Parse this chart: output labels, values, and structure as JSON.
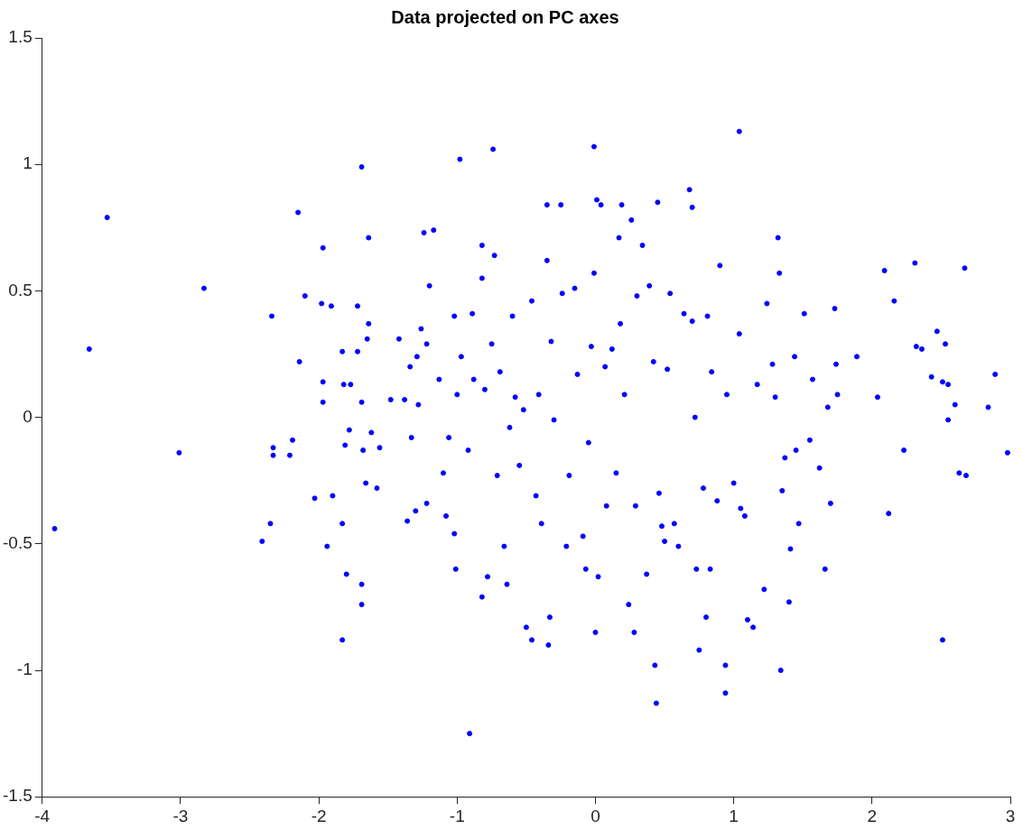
{
  "chart_data": {
    "type": "scatter",
    "title": "Data projected on PC axes",
    "xlim": [
      -4,
      3
    ],
    "ylim": [
      -1.5,
      1.5
    ],
    "xticks": [
      -4,
      -3,
      -2,
      -1,
      0,
      1,
      2,
      3
    ],
    "yticks": [
      -1.5,
      -1,
      -0.5,
      0,
      0.5,
      1,
      1.5
    ],
    "grid": false,
    "legend": false,
    "marker": "circle",
    "series": [
      {
        "color": "#0000ff",
        "x": [
          -3.91,
          -3.66,
          -3.53,
          -3.01,
          -2.83,
          -2.41,
          -2.35,
          -2.34,
          -2.33,
          -2.33,
          -2.15,
          -2.14,
          -2.1,
          -2.19,
          -2.21,
          -2.03,
          -1.97,
          -1.98,
          -1.97,
          -1.97,
          -1.94,
          -1.91,
          -1.9,
          -1.82,
          -1.83,
          -1.83,
          -1.83,
          -1.8,
          -1.77,
          -1.78,
          -1.81,
          -1.69,
          -1.72,
          -1.72,
          -1.69,
          -1.68,
          -1.69,
          -1.69,
          -1.64,
          -1.64,
          -1.65,
          -1.66,
          -1.62,
          -1.58,
          -1.56,
          -1.48,
          -1.42,
          -1.38,
          -1.36,
          -1.34,
          -1.33,
          -1.3,
          -1.29,
          -1.28,
          -1.26,
          -1.24,
          -1.22,
          -1.22,
          -1.2,
          -1.17,
          -1.13,
          -1.1,
          -1.08,
          -1.06,
          -1.02,
          -1.02,
          -1.0,
          -1.01,
          -0.98,
          -0.97,
          -0.92,
          -0.91,
          -0.89,
          -0.88,
          -0.82,
          -0.82,
          -0.82,
          -0.8,
          -0.78,
          -0.75,
          -0.74,
          -0.73,
          -0.71,
          -0.69,
          -0.66,
          -0.64,
          -0.62,
          -0.6,
          -0.58,
          -0.55,
          -0.52,
          -0.5,
          -0.46,
          -0.46,
          -0.43,
          -0.41,
          -0.39,
          -0.35,
          -0.35,
          -0.33,
          -0.34,
          -0.32,
          -0.3,
          -0.25,
          -0.24,
          -0.21,
          -0.19,
          -0.15,
          -0.13,
          -0.09,
          -0.07,
          -0.05,
          -0.03,
          -0.01,
          -0.01,
          0.0,
          0.01,
          0.02,
          0.04,
          0.07,
          0.08,
          0.12,
          0.15,
          0.17,
          0.19,
          0.18,
          0.21,
          0.24,
          0.26,
          0.28,
          0.29,
          0.3,
          0.34,
          0.37,
          0.39,
          0.42,
          0.43,
          0.44,
          0.45,
          0.46,
          0.48,
          0.5,
          0.52,
          0.54,
          0.57,
          0.6,
          0.64,
          0.68,
          0.7,
          0.7,
          0.72,
          0.73,
          0.75,
          0.78,
          0.8,
          0.81,
          0.83,
          0.84,
          0.88,
          0.9,
          0.94,
          0.94,
          0.95,
          1.0,
          1.04,
          1.04,
          1.05,
          1.08,
          1.1,
          1.14,
          1.17,
          1.22,
          1.24,
          1.28,
          1.3,
          1.32,
          1.33,
          1.34,
          1.35,
          1.37,
          1.4,
          1.41,
          1.44,
          1.45,
          1.47,
          1.51,
          1.55,
          1.57,
          1.62,
          1.66,
          1.68,
          1.7,
          1.73,
          1.74,
          1.75,
          1.89,
          2.04,
          2.09,
          2.12,
          2.16,
          2.23,
          2.31,
          2.32,
          2.36,
          2.43,
          2.47,
          2.51,
          2.51,
          2.53,
          2.55,
          2.55,
          2.6,
          2.63,
          2.67,
          2.68,
          2.89,
          2.84,
          2.98
        ],
        "values": [
          -0.44,
          0.27,
          0.79,
          -0.14,
          0.51,
          -0.49,
          -0.42,
          0.4,
          -0.12,
          -0.15,
          0.81,
          0.22,
          0.48,
          -0.09,
          -0.15,
          -0.32,
          0.67,
          0.45,
          0.14,
          0.06,
          -0.51,
          0.44,
          -0.31,
          0.13,
          0.26,
          -0.42,
          -0.88,
          -0.62,
          0.13,
          -0.05,
          -0.11,
          0.99,
          0.44,
          0.26,
          0.06,
          -0.13,
          -0.66,
          -0.74,
          0.71,
          0.37,
          0.31,
          -0.26,
          -0.06,
          -0.28,
          -0.12,
          0.07,
          0.31,
          0.07,
          -0.41,
          0.2,
          -0.08,
          -0.37,
          0.24,
          0.05,
          0.35,
          0.73,
          0.29,
          -0.34,
          0.52,
          0.74,
          0.15,
          -0.22,
          -0.39,
          -0.08,
          0.4,
          -0.46,
          0.09,
          -0.6,
          1.02,
          0.24,
          -0.13,
          -1.25,
          0.41,
          0.15,
          0.55,
          -0.71,
          0.68,
          0.11,
          -0.63,
          0.29,
          1.06,
          0.64,
          -0.23,
          0.18,
          -0.51,
          -0.66,
          -0.04,
          0.4,
          0.08,
          -0.19,
          0.03,
          -0.83,
          0.46,
          -0.88,
          -0.31,
          0.09,
          -0.42,
          0.84,
          0.62,
          -0.79,
          -0.9,
          0.3,
          -0.01,
          0.84,
          0.49,
          -0.51,
          -0.23,
          0.51,
          0.17,
          -0.47,
          -0.6,
          -0.1,
          0.28,
          1.07,
          0.57,
          -0.85,
          0.86,
          -0.63,
          0.84,
          0.2,
          -0.35,
          0.27,
          -0.22,
          0.71,
          0.84,
          0.37,
          0.09,
          -0.74,
          0.78,
          -0.85,
          -0.35,
          0.48,
          0.68,
          -0.62,
          0.52,
          0.22,
          -0.98,
          -1.13,
          0.85,
          -0.3,
          -0.43,
          -0.49,
          0.19,
          0.49,
          -0.42,
          -0.51,
          0.41,
          0.9,
          0.83,
          0.38,
          0.0,
          -0.6,
          -0.92,
          -0.28,
          -0.79,
          0.4,
          -0.6,
          0.18,
          -0.33,
          0.6,
          -0.98,
          -1.09,
          0.09,
          -0.26,
          0.33,
          1.13,
          -0.36,
          -0.39,
          -0.8,
          -0.83,
          0.13,
          -0.68,
          0.45,
          0.21,
          0.08,
          0.71,
          0.57,
          -1.0,
          -0.29,
          -0.16,
          -0.73,
          -0.52,
          0.24,
          -0.13,
          -0.42,
          0.41,
          -0.09,
          0.15,
          -0.2,
          -0.6,
          0.04,
          -0.34,
          0.43,
          0.21,
          0.09,
          0.24,
          0.08,
          0.58,
          -0.38,
          0.46,
          -0.13,
          0.61,
          0.28,
          0.27,
          0.16,
          0.34,
          0.14,
          -0.88,
          0.29,
          0.13,
          -0.01,
          0.05,
          -0.22,
          0.59,
          -0.23,
          0.17,
          0.04,
          -0.14
        ]
      }
    ]
  }
}
